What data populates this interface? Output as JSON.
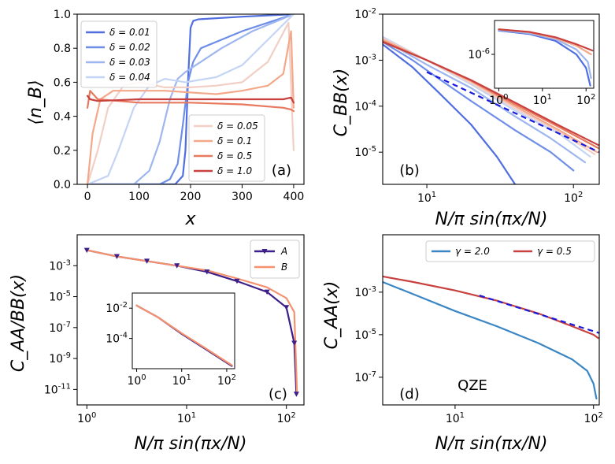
{
  "chart_data": [
    {
      "panel": "(a)",
      "type": "line",
      "xlabel": "x",
      "ylabel": "⟨n_B⟩",
      "xlim": [
        -20,
        420
      ],
      "ylim": [
        0,
        1.0
      ],
      "xticks": [
        0,
        100,
        200,
        300,
        400
      ],
      "yticks": [
        0.0,
        0.2,
        0.4,
        0.6,
        0.8,
        1.0
      ],
      "legend": [
        {
          "location": "upper-left",
          "entries": [
            "δ = 0.01",
            "δ = 0.02",
            "δ = 0.03",
            "δ = 0.04"
          ]
        },
        {
          "location": "lower-right",
          "entries": [
            "δ = 0.05",
            "δ = 0.1",
            "δ = 0.5",
            "δ = 1.0"
          ]
        }
      ],
      "series": [
        {
          "name": "δ = 0.01",
          "color": "#4f6ee0",
          "x": [
            0,
            170,
            185,
            190,
            195,
            200,
            205,
            215,
            300,
            400
          ],
          "y": [
            0.0,
            0.0,
            0.05,
            0.2,
            0.6,
            0.92,
            0.96,
            0.97,
            0.985,
            1.0
          ]
        },
        {
          "name": "δ = 0.02",
          "color": "#6f8ee8",
          "x": [
            0,
            140,
            160,
            175,
            185,
            195,
            205,
            220,
            300,
            400
          ],
          "y": [
            0.0,
            0.0,
            0.03,
            0.12,
            0.35,
            0.6,
            0.72,
            0.8,
            0.9,
            1.0
          ]
        },
        {
          "name": "δ = 0.03",
          "color": "#9db6ef",
          "x": [
            0,
            90,
            120,
            140,
            160,
            175,
            190,
            210,
            260,
            320,
            400
          ],
          "y": [
            0.0,
            0.0,
            0.08,
            0.25,
            0.5,
            0.62,
            0.66,
            0.7,
            0.8,
            0.9,
            1.0
          ]
        },
        {
          "name": "δ = 0.04",
          "color": "#c4d4f5",
          "x": [
            0,
            40,
            60,
            90,
            120,
            150,
            190,
            250,
            300,
            350,
            400
          ],
          "y": [
            0.0,
            0.05,
            0.2,
            0.45,
            0.58,
            0.62,
            0.6,
            0.63,
            0.7,
            0.85,
            1.0
          ]
        },
        {
          "name": "δ = 0.05",
          "color": "#f2cfc4",
          "x": [
            0,
            20,
            40,
            70,
            100,
            150,
            200,
            250,
            300,
            350,
            390,
            400
          ],
          "y": [
            0.0,
            0.2,
            0.45,
            0.58,
            0.6,
            0.57,
            0.57,
            0.58,
            0.6,
            0.72,
            0.95,
            0.2
          ]
        },
        {
          "name": "δ = 0.1",
          "color": "#f4a88a",
          "x": [
            0,
            10,
            25,
            50,
            100,
            150,
            200,
            250,
            300,
            350,
            380,
            395,
            400
          ],
          "y": [
            0.0,
            0.3,
            0.5,
            0.55,
            0.55,
            0.55,
            0.54,
            0.53,
            0.55,
            0.58,
            0.65,
            0.9,
            0.45
          ]
        },
        {
          "name": "δ = 0.5",
          "color": "#e8795e",
          "x": [
            0,
            5,
            20,
            100,
            200,
            300,
            380,
            395,
            400
          ],
          "y": [
            0.45,
            0.55,
            0.5,
            0.48,
            0.48,
            0.47,
            0.45,
            0.44,
            0.43
          ]
        },
        {
          "name": "δ = 1.0",
          "color": "#c8413f",
          "x": [
            0,
            5,
            20,
            100,
            200,
            300,
            380,
            395,
            400
          ],
          "y": [
            0.52,
            0.5,
            0.49,
            0.5,
            0.5,
            0.5,
            0.5,
            0.51,
            0.48
          ]
        }
      ],
      "annotation": "(a)"
    },
    {
      "panel": "(b)",
      "type": "line",
      "xscale": "log",
      "yscale": "log",
      "xlabel": "N/π sin(πx/N)",
      "ylabel": "C_BB(x)",
      "xlim": [
        5,
        150
      ],
      "ylim": [
        2e-06,
        0.01
      ],
      "xticks": [
        "10^1",
        "10^2"
      ],
      "yticks": [
        "10^-5",
        "10^-4",
        "10^-3",
        "10^-2"
      ],
      "guide_line": {
        "style": "dashed",
        "color": "#1a1adc",
        "x": [
          10,
          150
        ],
        "y": [
          0.00055,
          1e-05
        ]
      },
      "series": [
        {
          "name": "δ = 0.01",
          "color": "#4f6ee0",
          "x": [
            5,
            8,
            12,
            20,
            30,
            40
          ],
          "y": [
            0.0022,
            0.0007,
            0.0002,
            4e-05,
            8e-06,
            2e-06
          ]
        },
        {
          "name": "δ = 0.02",
          "color": "#6f8ee8",
          "x": [
            5,
            8,
            12,
            20,
            40,
            70,
            100
          ],
          "y": [
            0.0025,
            0.001,
            0.0004,
            0.00013,
            3e-05,
            1e-05,
            4e-06
          ]
        },
        {
          "name": "δ = 0.03",
          "color": "#9db6ef",
          "x": [
            5,
            10,
            20,
            40,
            70,
            120
          ],
          "y": [
            0.0028,
            0.0008,
            0.00025,
            6e-05,
            2e-05,
            6e-06
          ]
        },
        {
          "name": "δ = 0.04",
          "color": "#c4d4f5",
          "x": [
            5,
            10,
            20,
            40,
            80,
            130
          ],
          "y": [
            0.0032,
            0.001,
            0.0003,
            8e-05,
            2.5e-05,
            8e-06
          ]
        },
        {
          "name": "δ = 0.05",
          "color": "#f2cfc4",
          "x": [
            5,
            10,
            20,
            40,
            80,
            140
          ],
          "y": [
            0.003,
            0.001,
            0.00032,
            9e-05,
            2.8e-05,
            9e-06
          ]
        },
        {
          "name": "δ = 0.1",
          "color": "#f4a88a",
          "x": [
            5,
            10,
            20,
            40,
            80,
            145
          ],
          "y": [
            0.0028,
            0.001,
            0.00035,
            0.0001,
            3e-05,
            1e-05
          ]
        },
        {
          "name": "δ = 0.5",
          "color": "#e8795e",
          "x": [
            5,
            10,
            20,
            40,
            80,
            150
          ],
          "y": [
            0.0026,
            0.001,
            0.00036,
            0.00011,
            3.5e-05,
            1.2e-05
          ]
        },
        {
          "name": "δ = 1.0",
          "color": "#c8413f",
          "x": [
            5,
            10,
            20,
            40,
            80,
            150
          ],
          "y": [
            0.0025,
            0.001,
            0.00037,
            0.00012,
            3.8e-05,
            1.4e-05
          ]
        }
      ],
      "inset": {
        "xscale": "log",
        "yscale": "log",
        "xticks": [
          "10^0",
          "10^1",
          "10^2"
        ],
        "yticks": [
          "10^-6"
        ],
        "xlim": [
          0.8,
          150
        ],
        "ylim": [
          1e-07,
          1e-05
        ],
        "series": [
          {
            "color": "#4f6ee0",
            "x": [
              1,
              5,
              20,
              60,
              100,
              125
            ],
            "y": [
              5e-06,
              4e-06,
              2.5e-06,
              1e-06,
              4e-07,
              1.2e-07
            ]
          },
          {
            "color": "#9db6ef",
            "x": [
              1,
              5,
              20,
              60,
              110,
              130
            ],
            "y": [
              5.2e-06,
              4.2e-06,
              2.8e-06,
              1.4e-06,
              6e-07,
              2e-07
            ]
          },
          {
            "color": "#f4a88a",
            "x": [
              1,
              5,
              20,
              60,
              130
            ],
            "y": [
              5.5e-06,
              4.5e-06,
              3e-06,
              1.8e-06,
              1e-06
            ]
          },
          {
            "color": "#c8413f",
            "x": [
              1,
              5,
              20,
              60,
              140
            ],
            "y": [
              5.5e-06,
              4.6e-06,
              3.2e-06,
              2e-06,
              1.3e-06
            ]
          }
        ]
      },
      "annotation": "(b)"
    },
    {
      "panel": "(c)",
      "type": "line",
      "xscale": "log",
      "yscale": "log",
      "xlabel": "N/π sin(πx/N)",
      "ylabel": "C_AA/BB(x)",
      "xlim": [
        0.8,
        150
      ],
      "ylim": [
        1e-12,
        0.1
      ],
      "xticks": [
        "10^0",
        "10^1",
        "10^2"
      ],
      "yticks": [
        "10^-11",
        "10^-9",
        "10^-7",
        "10^-5",
        "10^-3"
      ],
      "legend": {
        "location": "upper-right",
        "entries": [
          "A",
          "B"
        ]
      },
      "series": [
        {
          "name": "A",
          "color": "#3d1f8a",
          "marker": "triangle-down",
          "x": [
            1,
            2,
            4,
            8,
            16,
            32,
            64,
            100,
            120,
            126
          ],
          "y": [
            0.01,
            0.004,
            0.002,
            0.001,
            0.0004,
            0.0001,
            2e-05,
            2e-06,
            1e-08,
            5e-12
          ]
        },
        {
          "name": "B",
          "color": "#f4916e",
          "x": [
            1,
            2,
            4,
            8,
            16,
            32,
            64,
            100,
            120,
            128
          ],
          "y": [
            0.01,
            0.004,
            0.002,
            0.001,
            0.0005,
            0.00015,
            4e-05,
            8e-06,
            1e-06,
            5e-12
          ]
        }
      ],
      "inset": {
        "xscale": "log",
        "yscale": "log",
        "xticks": [
          "10^0",
          "10^1",
          "10^2"
        ],
        "yticks": [
          "10^-4",
          "10^-2"
        ],
        "xlim": [
          0.8,
          150
        ],
        "ylim": [
          1e-06,
          0.1
        ],
        "series": [
          {
            "color": "#3d1f8a",
            "x": [
              1,
              3,
              10,
              30,
              100,
              130
            ],
            "y": [
              0.015,
              0.0025,
              0.0002,
              2.5e-05,
              2.5e-06,
              1.5e-06
            ]
          },
          {
            "color": "#f4916e",
            "x": [
              1,
              3,
              10,
              30,
              100,
              130
            ],
            "y": [
              0.015,
              0.0025,
              0.00022,
              2.8e-05,
              2.8e-06,
              1.7e-06
            ]
          }
        ]
      },
      "annotation": "(c)"
    },
    {
      "panel": "(d)",
      "type": "line",
      "xscale": "log",
      "yscale": "log",
      "xlabel": "N/π sin(πx/N)",
      "ylabel": "C_AA(x)",
      "xlim": [
        3,
        110
      ],
      "ylim": [
        5e-09,
        0.5
      ],
      "xticks": [
        "10^1",
        "10^2"
      ],
      "yticks": [
        "10^-7",
        "10^-5",
        "10^-3"
      ],
      "legend": {
        "location": "upper-right",
        "entries": [
          "γ = 2.0",
          "γ = 0.5"
        ]
      },
      "guide_line": {
        "style": "dashed",
        "color": "#1a1adc",
        "x": [
          15,
          110
        ],
        "y": [
          0.0007,
          1.2e-05
        ]
      },
      "series": [
        {
          "name": "γ = 2.0",
          "color": "#3a86c4",
          "x": [
            3,
            5,
            10,
            20,
            40,
            70,
            90,
            100,
            105
          ],
          "y": [
            0.003,
            0.0008,
            0.00013,
            2.5e-05,
            4e-06,
            7e-07,
            2e-07,
            5e-08,
            1e-08
          ]
        },
        {
          "name": "γ = 0.5",
          "color": "#c8413f",
          "x": [
            3,
            5,
            10,
            20,
            40,
            70,
            100,
            108
          ],
          "y": [
            0.0055,
            0.003,
            0.0012,
            0.0004,
            0.0001,
            2.5e-05,
            1e-05,
            7e-06
          ]
        }
      ],
      "annotation_text": "QZE",
      "annotation": "(d)"
    }
  ]
}
